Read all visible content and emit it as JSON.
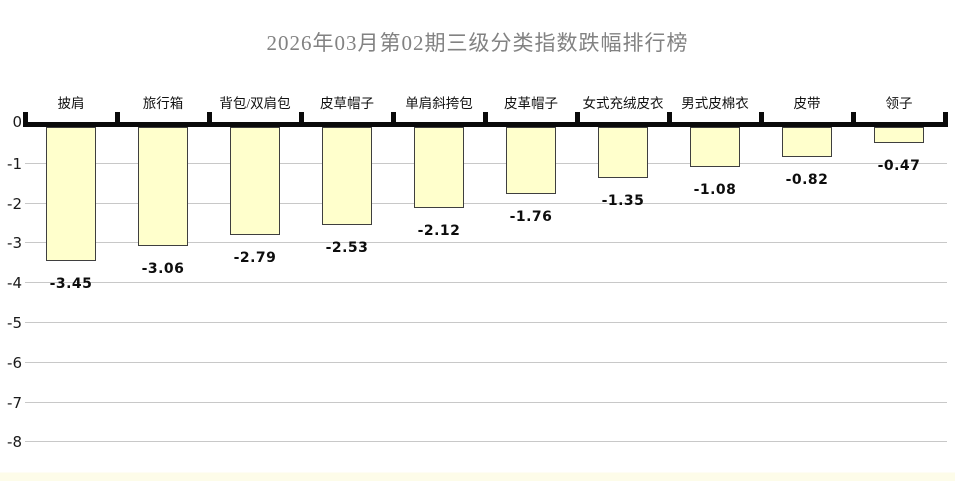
{
  "chart_data": {
    "type": "bar",
    "title": "2026年03月第02期三级分类指数跌幅排行榜",
    "categories": [
      "披肩",
      "旅行箱",
      "背包/双肩包",
      "皮草帽子",
      "单肩斜挎包",
      "皮革帽子",
      "女式充绒皮衣",
      "男式皮棉衣",
      "皮带",
      "领子"
    ],
    "values": [
      -3.45,
      -3.06,
      -2.79,
      -2.53,
      -2.12,
      -1.76,
      -1.35,
      -1.08,
      -0.82,
      -0.47
    ],
    "data_labels": [
      "-3.45",
      "-3.06",
      "-2.79",
      "-2.53",
      "-2.12",
      "-1.76",
      "-1.35",
      "-1.08",
      "-0.82",
      "-0.47"
    ],
    "xlabel": "",
    "ylabel": "",
    "ylim": [
      -8,
      0
    ],
    "yticks": [
      0,
      -1,
      -2,
      -3,
      -4,
      -5,
      -6,
      -7,
      -8
    ],
    "grid": true,
    "legend": "none",
    "category_axis_position": "top",
    "colors": {
      "bar_fill": "#FFFFCC",
      "bar_border": "#3f3f3f",
      "gridline": "#c8c8c8",
      "axis": "#0a0a0a",
      "title_text": "#828282",
      "label_text": "#0d0d0d",
      "bottom_strip": "#fdfce9"
    }
  }
}
